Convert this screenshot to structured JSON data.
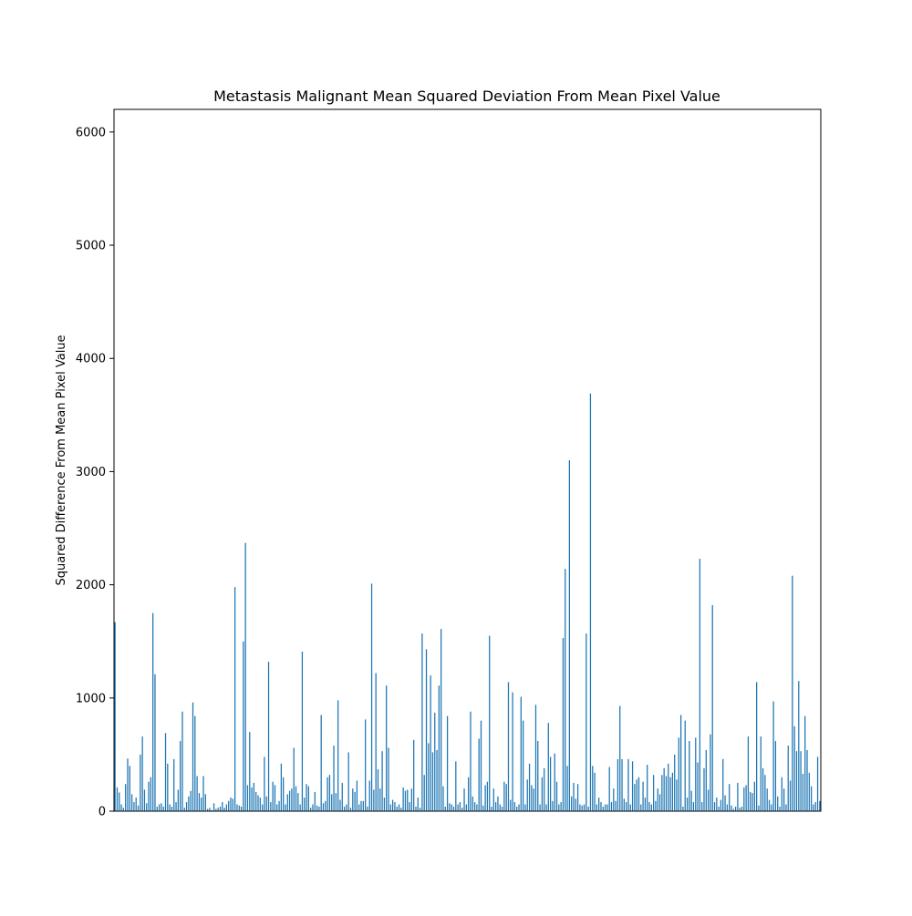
{
  "chart_data": {
    "type": "bar",
    "title": "Metastasis Malignant Mean Squared Deviation From Mean Pixel Value",
    "xlabel": "",
    "ylabel": "Squared Difference From Mean Pixel Value",
    "ylim": [
      0,
      6200
    ],
    "yticks": [
      0,
      1000,
      2000,
      3000,
      4000,
      5000,
      6000
    ],
    "ytick_labels": [
      "0",
      "1000",
      "2000",
      "3000",
      "4000",
      "5000",
      "6000"
    ],
    "x_ticks_shown": false,
    "bar_color": "#1f77b4",
    "values": [
      1670,
      210,
      165,
      60,
      30,
      240,
      465,
      400,
      150,
      80,
      120,
      50,
      500,
      660,
      190,
      70,
      260,
      300,
      1750,
      1210,
      40,
      60,
      70,
      40,
      690,
      420,
      60,
      40,
      460,
      80,
      190,
      620,
      880,
      30,
      80,
      130,
      180,
      960,
      840,
      310,
      160,
      120,
      310,
      150,
      20,
      30,
      10,
      70,
      20,
      30,
      40,
      80,
      30,
      60,
      90,
      120,
      110,
      1980,
      60,
      50,
      40,
      1500,
      2370,
      230,
      700,
      210,
      250,
      170,
      140,
      120,
      60,
      480,
      130,
      1320,
      80,
      260,
      230,
      60,
      90,
      420,
      300,
      60,
      150,
      180,
      200,
      560,
      220,
      160,
      60,
      1410,
      120,
      240,
      220,
      30,
      60,
      170,
      50,
      40,
      850,
      70,
      90,
      300,
      320,
      150,
      580,
      160,
      980,
      100,
      250,
      40,
      60,
      520,
      30,
      200,
      170,
      270,
      60,
      90,
      90,
      810,
      40,
      270,
      2010,
      190,
      1220,
      370,
      200,
      530,
      120,
      1110,
      560,
      60,
      100,
      80,
      40,
      60,
      30,
      210,
      180,
      190,
      80,
      200,
      630,
      40,
      120,
      30,
      1570,
      320,
      1430,
      600,
      1200,
      520,
      870,
      540,
      1110,
      1610,
      220,
      40,
      840,
      70,
      60,
      40,
      440,
      60,
      80,
      30,
      200,
      60,
      300,
      880,
      130,
      80,
      60,
      640,
      800,
      50,
      230,
      260,
      1550,
      40,
      200,
      80,
      130,
      60,
      40,
      260,
      240,
      1140,
      100,
      1050,
      80,
      40,
      60,
      1010,
      800,
      60,
      280,
      420,
      230,
      200,
      940,
      620,
      60,
      300,
      380,
      60,
      780,
      480,
      90,
      510,
      260,
      60,
      80,
      1530,
      2140,
      400,
      3100,
      130,
      250,
      110,
      240,
      60,
      50,
      60,
      1570,
      40,
      3690,
      400,
      340,
      60,
      120,
      80,
      40,
      60,
      60,
      390,
      80,
      200,
      90,
      460,
      930,
      460,
      110,
      80,
      460,
      60,
      440,
      240,
      280,
      300,
      60,
      260,
      120,
      410,
      80,
      60,
      320,
      90,
      200,
      150,
      320,
      380,
      310,
      420,
      300,
      340,
      500,
      280,
      650,
      850,
      40,
      800,
      120,
      620,
      180,
      80,
      650,
      430,
      2230,
      80,
      380,
      540,
      190,
      680,
      1820,
      80,
      120,
      40,
      100,
      460,
      140,
      60,
      240,
      50,
      20,
      40,
      250,
      30,
      40,
      210,
      230,
      660,
      170,
      160,
      260,
      1140,
      50,
      660,
      380,
      320,
      200,
      100,
      60,
      970,
      620,
      130,
      40,
      300,
      200,
      60,
      580,
      270,
      2080,
      750,
      530,
      1150,
      530,
      330,
      840,
      540,
      340,
      220,
      60,
      80,
      480,
      90
    ]
  }
}
